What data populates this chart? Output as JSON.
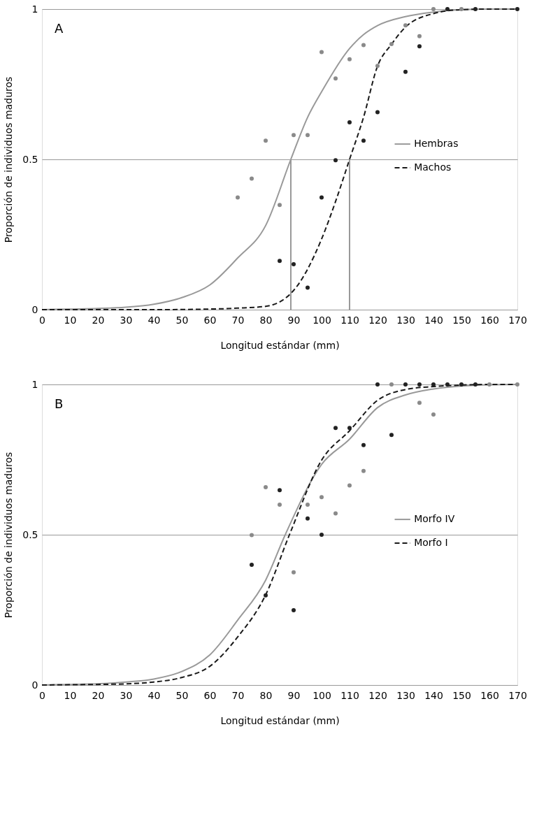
{
  "chart_data": [
    {
      "type": "line",
      "xlabel": "Longitud estándar (mm)",
      "ylabel": "Proporción de individuos maduros",
      "annotations": [
        "A"
      ],
      "xlim": [
        0,
        170
      ],
      "xticks": [
        0,
        10,
        20,
        30,
        40,
        50,
        60,
        70,
        80,
        90,
        100,
        110,
        120,
        130,
        140,
        150,
        160,
        170
      ],
      "ylim": [
        0,
        1
      ],
      "yticks": [
        0,
        0.5,
        1
      ],
      "grid": "y",
      "legend": "right",
      "series": [
        {
          "name": "Hembras",
          "type": "line",
          "color": "#999999",
          "line_style": "solid",
          "x": [
            0,
            10,
            20,
            30,
            40,
            50,
            60,
            70,
            80,
            89,
            95,
            100,
            110,
            115,
            120,
            130,
            140,
            150,
            160,
            170
          ],
          "values": [
            0,
            0.002,
            0.004,
            0.008,
            0.018,
            0.04,
            0.082,
            0.172,
            0.28,
            0.5,
            0.64,
            0.725,
            0.869,
            0.915,
            0.945,
            0.975,
            0.99,
            0.998,
            1,
            1
          ]
        },
        {
          "name": "Machos",
          "type": "line",
          "color": "#1a1a1a",
          "line_style": "dashed",
          "x": [
            0,
            20,
            40,
            60,
            70,
            80,
            90,
            100,
            105,
            110,
            115,
            120,
            125,
            130,
            140,
            150,
            160,
            170
          ],
          "values": [
            0,
            0,
            0,
            0.002,
            0.005,
            0.011,
            0.064,
            0.235,
            0.36,
            0.5,
            0.64,
            0.81,
            0.883,
            0.94,
            0.985,
            0.998,
            1,
            1
          ]
        },
        {
          "type": "scatter",
          "marker": "circle",
          "color": "#8a8a8a",
          "x": [
            70,
            75,
            80,
            85,
            90,
            95,
            100,
            105,
            110,
            115,
            120,
            125,
            130,
            135,
            140,
            150
          ],
          "values": [
            0.373,
            0.436,
            0.562,
            0.348,
            0.581,
            0.581,
            0.857,
            0.769,
            0.833,
            0.88,
            0.811,
            0.884,
            0.946,
            0.91,
            1,
            1
          ]
        },
        {
          "type": "scatter",
          "marker": "circle",
          "color": "#222222",
          "x": [
            85,
            90,
            95,
            100,
            105,
            110,
            115,
            120,
            130,
            135,
            145,
            155,
            170
          ],
          "values": [
            0.162,
            0.151,
            0.073,
            0.373,
            0.497,
            0.623,
            0.562,
            0.657,
            0.791,
            0.876,
            1,
            1,
            1
          ]
        },
        {
          "type": "line",
          "color": "#999999",
          "line_style": "solid",
          "x": [
            89,
            89
          ],
          "values": [
            0,
            0.5
          ]
        },
        {
          "type": "line",
          "color": "#999999",
          "line_style": "solid",
          "x": [
            110,
            110
          ],
          "values": [
            0,
            0.5
          ]
        }
      ]
    },
    {
      "type": "line",
      "xlabel": "Longitud estándar (mm)",
      "ylabel": "Proporción de individuos maduros",
      "annotations": [
        "B"
      ],
      "xlim": [
        0,
        170
      ],
      "xticks": [
        0,
        10,
        20,
        30,
        40,
        50,
        60,
        70,
        80,
        90,
        100,
        110,
        120,
        130,
        140,
        150,
        160,
        170
      ],
      "ylim": [
        0,
        1
      ],
      "yticks": [
        0,
        0.5,
        1
      ],
      "grid": "y",
      "legend": "right",
      "series": [
        {
          "name": "Morfo IV",
          "type": "line",
          "color": "#999999",
          "line_style": "solid",
          "x": [
            0,
            10,
            20,
            30,
            40,
            50,
            60,
            70,
            80,
            87,
            100,
            110,
            120,
            130,
            140,
            150,
            160,
            170
          ],
          "values": [
            0,
            0.002,
            0.004,
            0.01,
            0.02,
            0.045,
            0.1,
            0.216,
            0.349,
            0.5,
            0.734,
            0.818,
            0.923,
            0.965,
            0.985,
            0.995,
            0.999,
            1
          ]
        },
        {
          "name": "Morfo I",
          "type": "line",
          "color": "#1a1a1a",
          "line_style": "dashed",
          "x": [
            0,
            10,
            20,
            30,
            40,
            50,
            60,
            70,
            80,
            88.5,
            100,
            110,
            120,
            130,
            140,
            150,
            160,
            170
          ],
          "values": [
            0,
            0.001,
            0.002,
            0.004,
            0.01,
            0.025,
            0.062,
            0.16,
            0.3,
            0.5,
            0.748,
            0.846,
            0.947,
            0.983,
            0.993,
            0.998,
            1,
            1
          ]
        },
        {
          "type": "scatter",
          "marker": "circle",
          "color": "#8a8a8a",
          "x": [
            75,
            80,
            85,
            90,
            95,
            100,
            105,
            110,
            115,
            125,
            135,
            140,
            160,
            170
          ],
          "values": [
            0.499,
            0.658,
            0.6,
            0.375,
            0.6,
            0.625,
            0.571,
            0.664,
            0.712,
            1,
            0.939,
            0.9,
            1,
            1
          ]
        },
        {
          "type": "scatter",
          "marker": "circle",
          "color": "#222222",
          "x": [
            75,
            80,
            85,
            90,
            95,
            100,
            105,
            110,
            115,
            120,
            125,
            130,
            135,
            140,
            145,
            150,
            155
          ],
          "values": [
            0.4,
            0.298,
            0.648,
            0.249,
            0.554,
            0.5,
            0.855,
            0.855,
            0.798,
            1,
            0.832,
            1,
            1,
            1,
            1,
            1,
            1
          ]
        }
      ]
    }
  ]
}
